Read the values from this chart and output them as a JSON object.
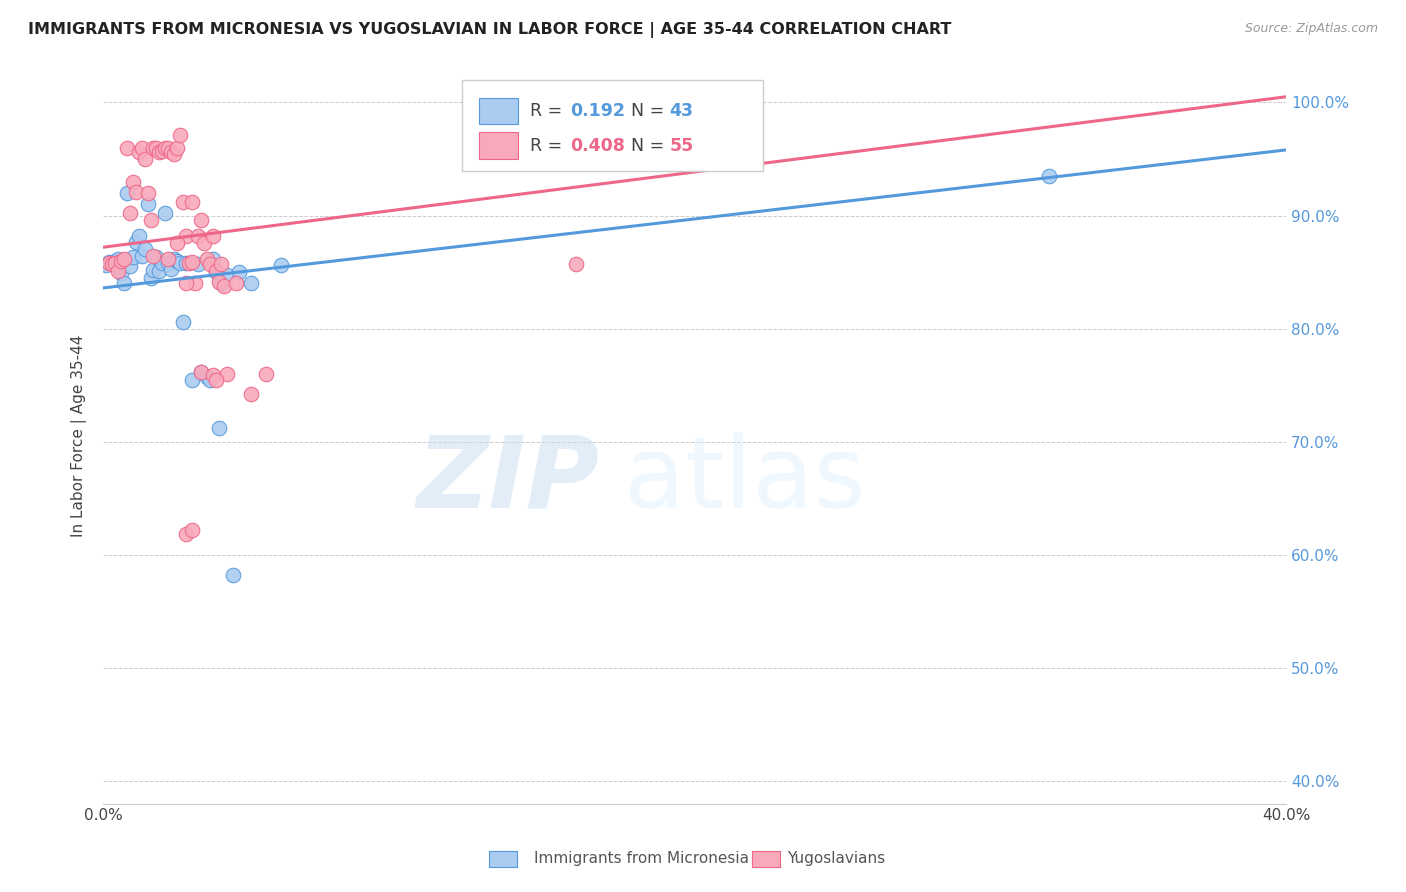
{
  "title": "IMMIGRANTS FROM MICRONESIA VS YUGOSLAVIAN IN LABOR FORCE | AGE 35-44 CORRELATION CHART",
  "source": "Source: ZipAtlas.com",
  "ylabel": "In Labor Force | Age 35-44",
  "xlim": [
    0.0,
    0.4
  ],
  "ylim": [
    0.38,
    1.03
  ],
  "xtick_positions": [
    0.0,
    0.05,
    0.1,
    0.15,
    0.2,
    0.25,
    0.3,
    0.35,
    0.4
  ],
  "xtick_labels": [
    "0.0%",
    "",
    "",
    "",
    "",
    "",
    "",
    "",
    "40.0%"
  ],
  "ytick_positions": [
    0.4,
    0.5,
    0.6,
    0.7,
    0.8,
    0.9,
    1.0
  ],
  "ytick_labels": [
    "40.0%",
    "50.0%",
    "60.0%",
    "70.0%",
    "80.0%",
    "90.0%",
    "100.0%"
  ],
  "blue_r": 0.192,
  "blue_n": 43,
  "pink_r": 0.408,
  "pink_n": 55,
  "blue_fill_color": "#aaccf0",
  "blue_edge_color": "#5599dd",
  "pink_fill_color": "#f8aabb",
  "pink_edge_color": "#ee6688",
  "blue_line_color": "#5599dd",
  "pink_line_color": "#ee6688",
  "legend_label_blue": "Immigrants from Micronesia",
  "legend_label_pink": "Yugoslavians",
  "watermark_zip": "ZIP",
  "watermark_atlas": "atlas",
  "blue_line_x0": 0.0,
  "blue_line_x1": 0.4,
  "blue_line_y0": 0.836,
  "blue_line_y1": 0.958,
  "pink_line_x0": 0.0,
  "pink_line_x1": 0.4,
  "pink_line_y0": 0.872,
  "pink_line_y1": 1.005,
  "blue_x": [
    0.001,
    0.002,
    0.003,
    0.004,
    0.005,
    0.006,
    0.007,
    0.008,
    0.009,
    0.01,
    0.011,
    0.012,
    0.013,
    0.014,
    0.015,
    0.016,
    0.017,
    0.018,
    0.019,
    0.02,
    0.021,
    0.022,
    0.023,
    0.024,
    0.025,
    0.026,
    0.027,
    0.028,
    0.03,
    0.032,
    0.033,
    0.035,
    0.036,
    0.037,
    0.038,
    0.039,
    0.04,
    0.042,
    0.044,
    0.046,
    0.05,
    0.06,
    0.32
  ],
  "blue_y": [
    0.856,
    0.859,
    0.857,
    0.86,
    0.862,
    0.849,
    0.84,
    0.92,
    0.855,
    0.863,
    0.877,
    0.882,
    0.864,
    0.87,
    0.91,
    0.845,
    0.852,
    0.863,
    0.851,
    0.858,
    0.902,
    0.858,
    0.853,
    0.862,
    0.86,
    0.858,
    0.806,
    0.858,
    0.755,
    0.857,
    0.762,
    0.757,
    0.755,
    0.862,
    0.85,
    0.712,
    0.84,
    0.847,
    0.582,
    0.85,
    0.84,
    0.856,
    0.935
  ],
  "pink_x": [
    0.002,
    0.003,
    0.004,
    0.005,
    0.006,
    0.007,
    0.008,
    0.009,
    0.01,
    0.011,
    0.012,
    0.013,
    0.014,
    0.015,
    0.016,
    0.017,
    0.018,
    0.019,
    0.02,
    0.021,
    0.022,
    0.023,
    0.024,
    0.025,
    0.026,
    0.027,
    0.028,
    0.029,
    0.03,
    0.031,
    0.032,
    0.033,
    0.034,
    0.035,
    0.036,
    0.037,
    0.038,
    0.039,
    0.04,
    0.041,
    0.042,
    0.045,
    0.05,
    0.055,
    0.16,
    0.017,
    0.022,
    0.025,
    0.028,
    0.03,
    0.033,
    0.037,
    0.028,
    0.03,
    0.038
  ],
  "pink_y": [
    0.858,
    0.857,
    0.858,
    0.851,
    0.86,
    0.862,
    0.96,
    0.902,
    0.93,
    0.921,
    0.956,
    0.96,
    0.95,
    0.92,
    0.896,
    0.96,
    0.96,
    0.956,
    0.957,
    0.96,
    0.96,
    0.956,
    0.954,
    0.96,
    0.971,
    0.912,
    0.882,
    0.858,
    0.912,
    0.84,
    0.882,
    0.896,
    0.876,
    0.862,
    0.857,
    0.882,
    0.851,
    0.841,
    0.857,
    0.838,
    0.76,
    0.84,
    0.742,
    0.76,
    0.857,
    0.864,
    0.862,
    0.876,
    0.84,
    0.859,
    0.762,
    0.759,
    0.618,
    0.622,
    0.755
  ]
}
